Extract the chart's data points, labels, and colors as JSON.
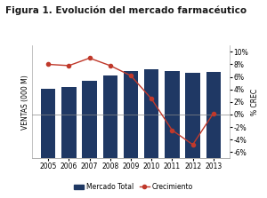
{
  "title": "Figura 1. Evolución del mercado farmacéutico",
  "years": [
    2005,
    2006,
    2007,
    2008,
    2009,
    2010,
    2011,
    2012,
    2013
  ],
  "bar_values": [
    13.5,
    14.0,
    15.2,
    16.2,
    17.0,
    17.4,
    17.1,
    16.7,
    16.9
  ],
  "line_values": [
    8.0,
    7.8,
    9.0,
    7.8,
    6.2,
    2.5,
    -2.5,
    -4.8,
    0.2
  ],
  "bar_color": "#1F3864",
  "line_color": "#C0392B",
  "ylabel_left": "VENTAS (000 M)",
  "ylabel_right": "% CREC",
  "ylim_left": [
    0,
    22
  ],
  "ylim_right": [
    -7,
    11
  ],
  "yticks_right": [
    -6,
    -4,
    -2,
    0,
    2,
    4,
    6,
    8,
    10
  ],
  "ytick_labels_right": [
    "-6%",
    "-4%",
    "-2%",
    "0%",
    "2%",
    "4%",
    "6%",
    "8%",
    "10%"
  ],
  "legend_bar": "Mercado Total",
  "legend_line": "Crecimiento",
  "background_color": "#FFFFFF",
  "title_fontsize": 7.5,
  "axis_label_fontsize": 5.5,
  "tick_fontsize": 5.5
}
